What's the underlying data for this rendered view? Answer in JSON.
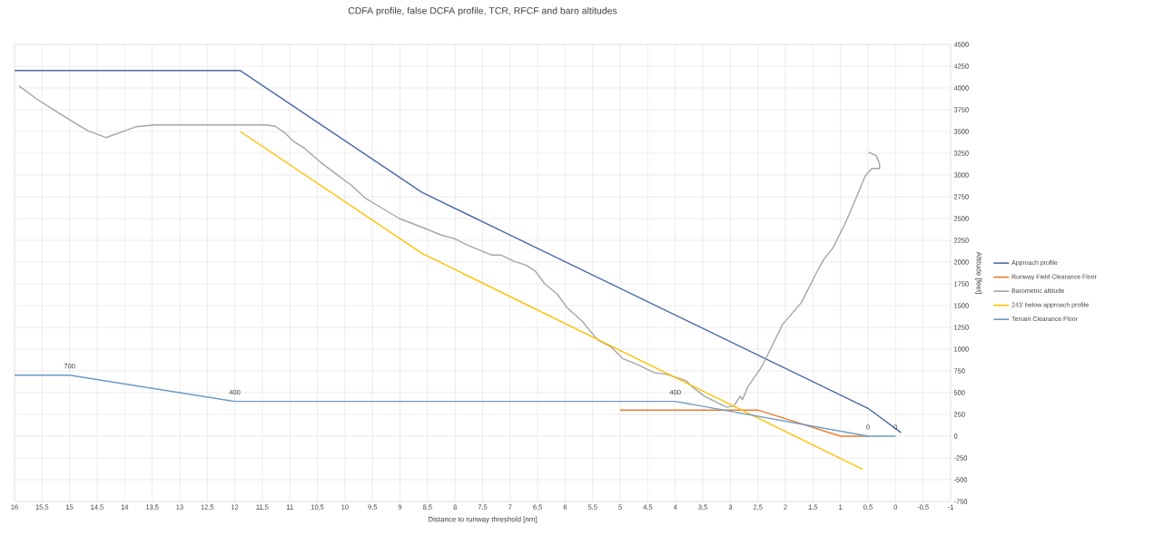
{
  "chart_data": {
    "type": "line",
    "title": "CDFA profile, false DCFA profile, TCR, RFCF and baro altitudes",
    "xlabel": "Distance to runway threshold [nm]",
    "ylabel": "Altitude [feet]",
    "xlim": [
      16,
      -1
    ],
    "ylim": [
      -750,
      4500
    ],
    "xticks": [
      16,
      {
        "value": 15.5,
        "label": "15,5"
      },
      15,
      {
        "value": 14.5,
        "label": "14,5"
      },
      14,
      {
        "value": 13.5,
        "label": "13,5"
      },
      13,
      {
        "value": 12.5,
        "label": "12,5"
      },
      12,
      {
        "value": 11.5,
        "label": "11,5"
      },
      11,
      {
        "value": 10.5,
        "label": "10,5"
      },
      10,
      {
        "value": 9.5,
        "label": "9,5"
      },
      9,
      {
        "value": 8.5,
        "label": "8,5"
      },
      8,
      {
        "value": 7.5,
        "label": "7,5"
      },
      7,
      {
        "value": 6.5,
        "label": "6,5"
      },
      6,
      {
        "value": 5.5,
        "label": "5,5"
      },
      5,
      {
        "value": 4.5,
        "label": "4,5"
      },
      4,
      {
        "value": 3.5,
        "label": "3,5"
      },
      3,
      {
        "value": 2.5,
        "label": "2,5"
      },
      2,
      {
        "value": 1.5,
        "label": "1,5"
      },
      1,
      {
        "value": 0.5,
        "label": "0,5"
      },
      0,
      {
        "value": -0.5,
        "label": "-0,5"
      },
      -1
    ],
    "yticks": [
      -750,
      -500,
      -250,
      0,
      250,
      500,
      750,
      1000,
      1250,
      1500,
      1750,
      2000,
      2250,
      2500,
      2750,
      3000,
      3250,
      3500,
      3750,
      4000,
      4250,
      4500
    ],
    "grid": true,
    "legend": "right",
    "marker": "none",
    "series": [
      {
        "name": "Approach profile",
        "color": "#4a69a5",
        "x": [
          16,
          11.9,
          8.6,
          0.5,
          -0.1
        ],
        "values": [
          4200,
          4200,
          2800,
          320,
          40
        ]
      },
      {
        "name": "Runway Field Clearance Floor",
        "color": "#ed7d31",
        "x": [
          5,
          2.5,
          1,
          0.5
        ],
        "values": [
          300,
          300,
          0,
          0
        ]
      },
      {
        "name": "Barometric altitude",
        "color": "#a5a5a5",
        "x": [
          15.92,
          15.6,
          15.27,
          14.95,
          14.67,
          14.34,
          14.07,
          13.79,
          13.46,
          11.43,
          11.27,
          11.1,
          10.94,
          10.72,
          10.45,
          10.22,
          9.89,
          9.62,
          9.34,
          9.01,
          8.52,
          8.25,
          8.01,
          7.79,
          7.33,
          7.16,
          6.93,
          6.71,
          6.54,
          6.37,
          6.14,
          5.97,
          5.69,
          5.41,
          5.18,
          4.95,
          4.67,
          4.39,
          4.15,
          3.81,
          3.7,
          3.47,
          3.25,
          3.07,
          2.94,
          2.82,
          2.78,
          2.68,
          2.45,
          2.33,
          2.05,
          1.71,
          1.43,
          1.31,
          1.14,
          0.91,
          0.74,
          0.55,
          0.43,
          0.29,
          0.29,
          0.35,
          0.49
        ],
        "values": [
          4025,
          3875,
          3740,
          3615,
          3510,
          3430,
          3490,
          3555,
          3575,
          3575,
          3560,
          3490,
          3390,
          3300,
          3150,
          3040,
          2885,
          2730,
          2625,
          2500,
          2380,
          2310,
          2270,
          2200,
          2080,
          2080,
          2010,
          1965,
          1895,
          1750,
          1630,
          1480,
          1320,
          1105,
          1030,
          890,
          820,
          730,
          710,
          640,
          570,
          460,
          390,
          335,
          345,
          460,
          420,
          570,
          780,
          925,
          1285,
          1535,
          1885,
          2025,
          2160,
          2450,
          2700,
          2990,
          3075,
          3075,
          3130,
          3220,
          3265
        ]
      },
      {
        "name": "243' below approach profile",
        "color": "#ffc000",
        "x": [
          11.9,
          8.6,
          0.6
        ],
        "values": [
          3500,
          2100,
          -380
        ]
      },
      {
        "name": "Terrain Clearance Floor",
        "color": "#6d9ac4",
        "x": [
          16,
          15,
          12,
          4,
          0.5,
          0
        ],
        "values": [
          700,
          700,
          400,
          400,
          0,
          0
        ],
        "value_labels": [
          null,
          "700",
          "400",
          "400",
          "0",
          "0"
        ]
      }
    ]
  }
}
